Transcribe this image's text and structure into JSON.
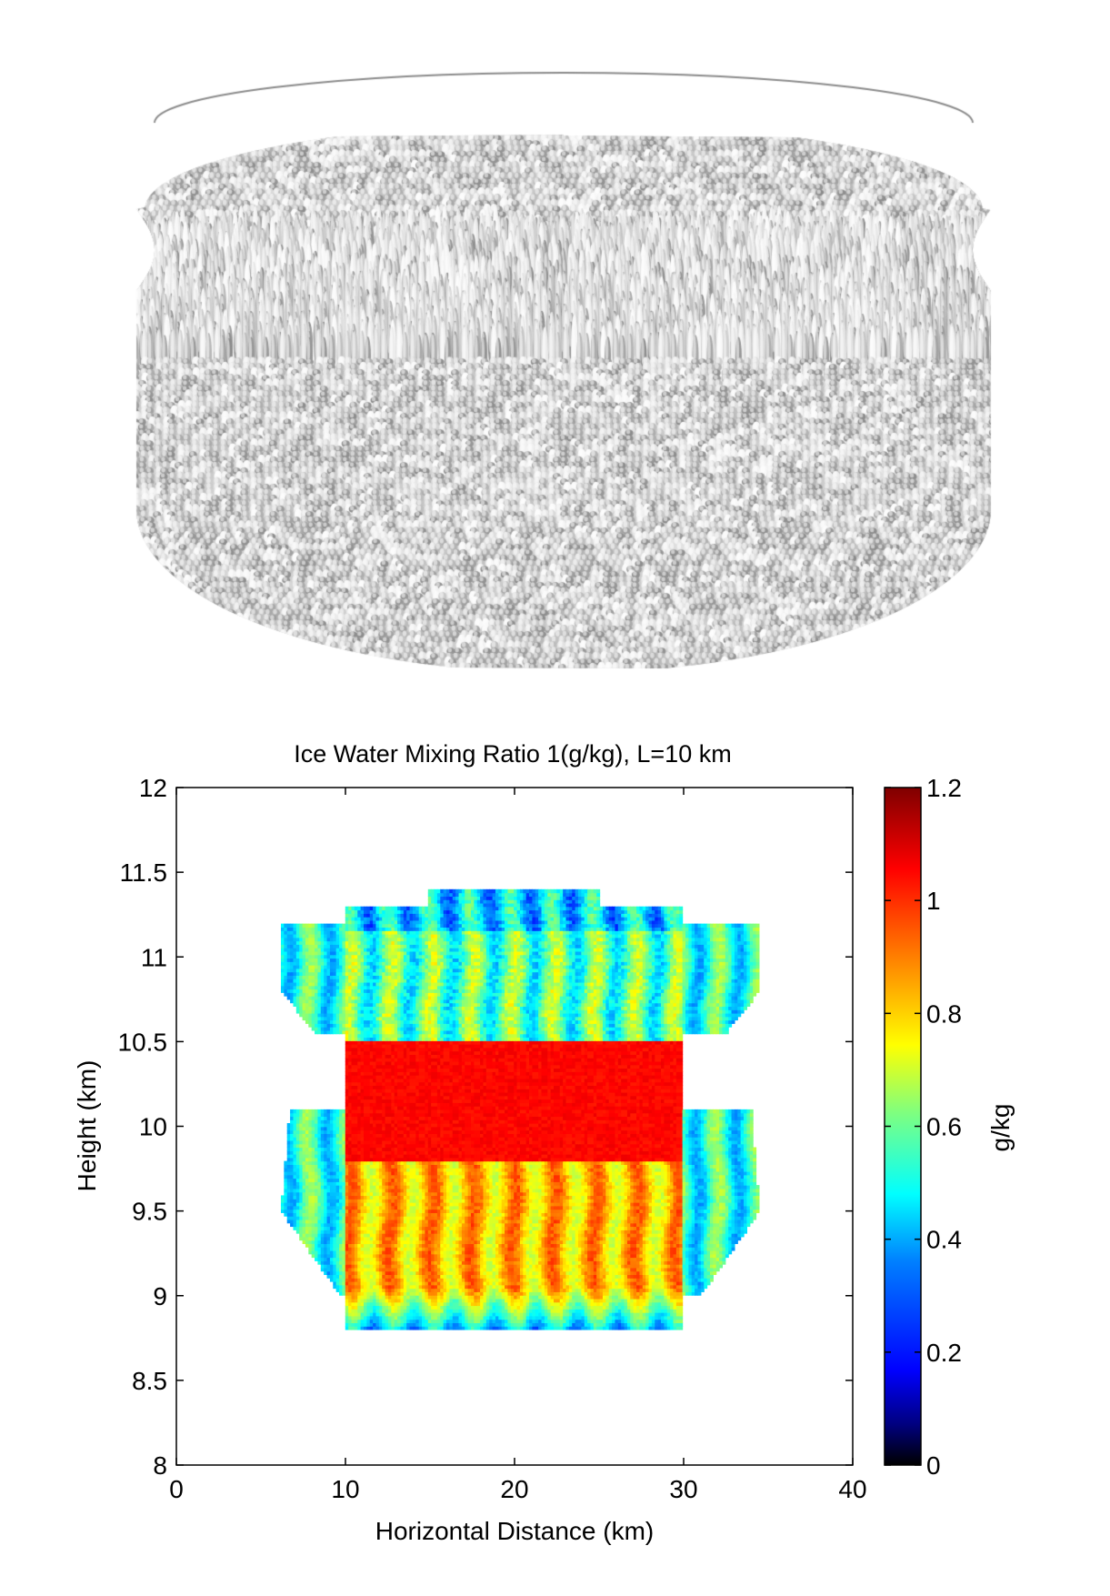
{
  "figure_3d": {
    "object": "ice-cloud-isosurface-render",
    "color": "#dcdcdc"
  },
  "chart_data": {
    "type": "heatmap",
    "title": "Ice Water Mixing Ratio 1(g/kg), L=10 km",
    "xlabel": "Horizontal Distance (km)",
    "ylabel": "Height (km)",
    "xlim": [
      0,
      40
    ],
    "ylim": [
      8,
      12
    ],
    "xticks": [
      0,
      10,
      20,
      30,
      40
    ],
    "yticks": [
      8,
      8.5,
      9,
      9.5,
      10,
      10.5,
      11,
      11.5,
      12
    ],
    "xtick_labels": [
      "0",
      "10",
      "20",
      "30",
      "40"
    ],
    "ytick_labels": [
      "8",
      "8.5",
      "9",
      "9.5",
      "10",
      "10.5",
      "11",
      "11.5",
      "12"
    ],
    "colorbar": {
      "label": "g/kg",
      "range": [
        0,
        1.2
      ],
      "ticks": [
        0,
        0.2,
        0.4,
        0.6,
        0.8,
        1,
        1.2
      ],
      "tick_labels": [
        "0",
        "0.2",
        "0.4",
        "0.6",
        "0.8",
        "1",
        "1.2"
      ],
      "colormap": "jet"
    },
    "field_description": {
      "cloud_x_range_km": [
        10,
        30
      ],
      "cloud_base_km": 8.8,
      "cloud_top_km": 11.4,
      "upper_layer_values": [
        0.4,
        0.7
      ],
      "core_layer_km": [
        9.8,
        10.5
      ],
      "core_value": 1.05,
      "lower_layer_values": [
        0.7,
        0.95
      ],
      "left_upper_flank_x_km": [
        6.2,
        9.5
      ],
      "right_upper_flank_x_km": [
        31,
        34.5
      ],
      "left_lower_flank_x_km": [
        6.2,
        9.5
      ],
      "right_lower_flank_x_km": [
        31,
        34.5
      ]
    }
  }
}
